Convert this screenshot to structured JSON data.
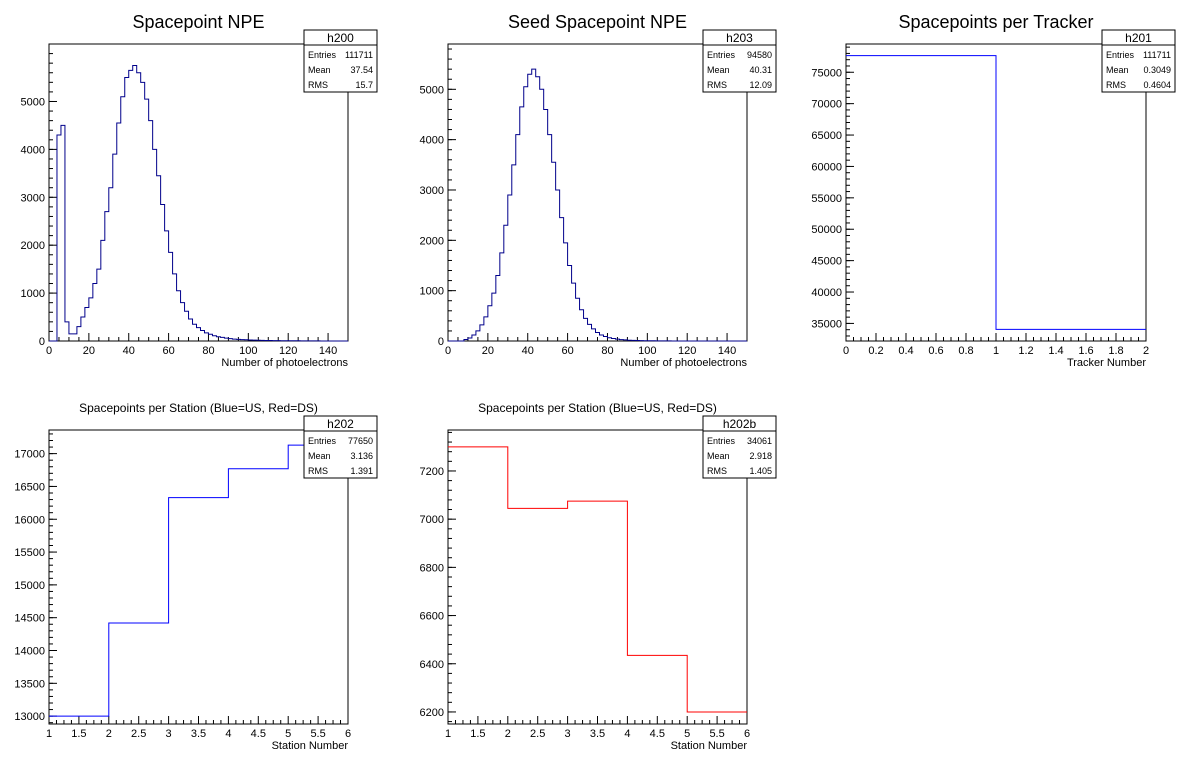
{
  "chart_data": [
    {
      "id": "h200",
      "type": "histogram",
      "title": "Spacepoint NPE",
      "xlabel": "Number of photoelectrons",
      "ylabel": "",
      "xlim": [
        0,
        150
      ],
      "ylim": [
        0,
        6200
      ],
      "xticks": [
        0,
        20,
        40,
        60,
        80,
        100,
        120,
        140
      ],
      "yticks": [
        0,
        1000,
        2000,
        3000,
        4000,
        5000
      ],
      "color": "#00008b",
      "bin_edges_start": 0,
      "bin_width": 2,
      "values": [
        0,
        0,
        4300,
        4500,
        400,
        150,
        150,
        300,
        500,
        700,
        900,
        1200,
        1500,
        2100,
        2700,
        3200,
        3900,
        4550,
        5100,
        5500,
        5650,
        5750,
        5600,
        5400,
        5050,
        4600,
        4000,
        3450,
        2850,
        2300,
        1850,
        1400,
        1050,
        800,
        620,
        460,
        350,
        280,
        220,
        170,
        140,
        110,
        90,
        75,
        60,
        50,
        40,
        35,
        30,
        25,
        22,
        18,
        15,
        12,
        10,
        10,
        8,
        8,
        6,
        6,
        5,
        4,
        4,
        3,
        3,
        2,
        2,
        2,
        1,
        1,
        1,
        0,
        0,
        0,
        0
      ],
      "stats": {
        "name": "h200",
        "Entries": "111711",
        "Mean": "37.54",
        "RMS": "15.7"
      }
    },
    {
      "id": "h203",
      "type": "histogram",
      "title": "Seed Spacepoint NPE",
      "xlabel": "Number of photoelectrons",
      "ylabel": "",
      "xlim": [
        0,
        150
      ],
      "ylim": [
        0,
        5900
      ],
      "xticks": [
        0,
        20,
        40,
        60,
        80,
        100,
        120,
        140
      ],
      "yticks": [
        0,
        1000,
        2000,
        3000,
        4000,
        5000
      ],
      "color": "#00008b",
      "bin_edges_start": 0,
      "bin_width": 2,
      "values": [
        0,
        0,
        0,
        0,
        30,
        60,
        120,
        200,
        320,
        480,
        700,
        950,
        1300,
        1750,
        2300,
        2900,
        3500,
        4100,
        4650,
        5050,
        5300,
        5400,
        5250,
        5000,
        4600,
        4100,
        3550,
        3000,
        2450,
        1950,
        1500,
        1150,
        850,
        620,
        450,
        330,
        240,
        170,
        120,
        90,
        65,
        50,
        38,
        28,
        22,
        16,
        12,
        10,
        8,
        6,
        5,
        4,
        3,
        3,
        2,
        2,
        1,
        1,
        1,
        0,
        0,
        0,
        0,
        0,
        0,
        0,
        0,
        0,
        0,
        0,
        0,
        0,
        0,
        0,
        0
      ],
      "stats": {
        "name": "h203",
        "Entries": "94580",
        "Mean": "40.31",
        "RMS": "12.09"
      }
    },
    {
      "id": "h201",
      "type": "histogram",
      "title": "Spacepoints per Tracker",
      "xlabel": "Tracker Number",
      "ylabel": "",
      "xlim": [
        0,
        2
      ],
      "ylim": [
        32200,
        79500
      ],
      "xticks": [
        0,
        0.2,
        0.4,
        0.6,
        0.8,
        1,
        1.2,
        1.4,
        1.6,
        1.8,
        2
      ],
      "yticks": [
        35000,
        40000,
        45000,
        50000,
        55000,
        60000,
        65000,
        70000,
        75000
      ],
      "color": "#0000ff",
      "bin_edges_start": 0,
      "bin_width": 1,
      "values": [
        77650,
        34061
      ],
      "stats": {
        "name": "h201",
        "Entries": "111711",
        "Mean": "0.3049",
        "RMS": "0.4604"
      }
    },
    {
      "id": "h202",
      "type": "histogram",
      "title": "Spacepoints per Station (Blue=US, Red=DS)",
      "xlabel": "Station Number",
      "ylabel": "",
      "xlim": [
        1,
        6
      ],
      "ylim": [
        12880,
        17360
      ],
      "xticks": [
        1,
        1.5,
        2,
        2.5,
        3,
        3.5,
        4,
        4.5,
        5,
        5.5,
        6
      ],
      "yticks": [
        13000,
        13500,
        14000,
        14500,
        15000,
        15500,
        16000,
        16500,
        17000
      ],
      "color": "#0000ff",
      "bin_edges_start": 1,
      "bin_width": 1,
      "values": [
        13000,
        14420,
        16330,
        16770,
        17130
      ],
      "stats": {
        "name": "h202",
        "Entries": "77650",
        "Mean": "3.136",
        "RMS": "1.391"
      }
    },
    {
      "id": "h202b",
      "type": "histogram",
      "title": "Spacepoints per Station (Blue=US, Red=DS)",
      "xlabel": "Station Number",
      "ylabel": "",
      "xlim": [
        1,
        6
      ],
      "ylim": [
        6150,
        7370
      ],
      "xticks": [
        1,
        1.5,
        2,
        2.5,
        3,
        3.5,
        4,
        4.5,
        5,
        5.5,
        6
      ],
      "yticks": [
        6200,
        6400,
        6600,
        6800,
        7000,
        7200
      ],
      "color": "#ff0000",
      "bin_edges_start": 1,
      "bin_width": 1,
      "values": [
        7300,
        7045,
        7075,
        6435,
        6200
      ],
      "stats": {
        "name": "h202b",
        "Entries": "34061",
        "Mean": "2.918",
        "RMS": "1.405"
      }
    }
  ]
}
